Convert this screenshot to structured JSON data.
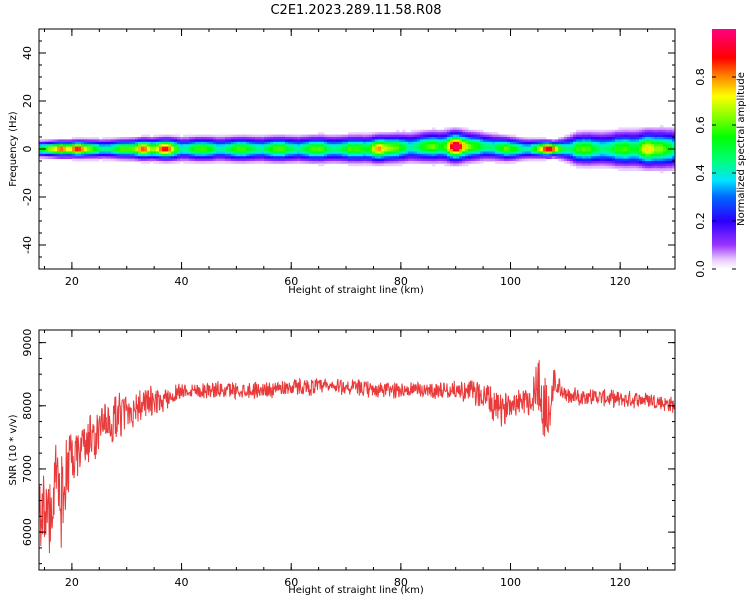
{
  "title": "C2E1.2023.289.11.58.R08",
  "chart_data": [
    {
      "type": "heatmap",
      "xlabel": "Height of straight line (km)",
      "ylabel": "Frequency (Hz)",
      "xlim": [
        14,
        130
      ],
      "ylim": [
        -50,
        50
      ],
      "x_ticks": [
        20,
        40,
        60,
        80,
        100,
        120
      ],
      "x_tick_labels": [
        "20",
        "40",
        "60",
        "80",
        "100",
        "120"
      ],
      "y_ticks": [
        40,
        20,
        0,
        -20,
        -40
      ],
      "y_tick_labels": [
        "40",
        "20",
        "0",
        "-20",
        "-40"
      ],
      "grid": false,
      "colorbar": {
        "label": "Normalized spectral amplitude",
        "range": [
          0,
          1
        ],
        "ticks": [
          0.0,
          0.2,
          0.4,
          0.6,
          0.8
        ],
        "tick_labels": [
          "0.0",
          "0.2",
          "0.4",
          "0.6",
          "0.8"
        ],
        "colormap": "gist_rainbow_r"
      },
      "band": {
        "center_frequency_hz": 0,
        "peak_frequency_profile": [
          [
            14,
            0
          ],
          [
            40,
            0
          ],
          [
            75,
            0
          ],
          [
            85,
            1
          ],
          [
            95,
            1
          ],
          [
            100,
            0
          ],
          [
            110,
            0
          ],
          [
            130,
            0
          ]
        ],
        "halfwidth_hz_profile": [
          [
            14,
            2
          ],
          [
            40,
            3
          ],
          [
            75,
            3.5
          ],
          [
            90,
            4
          ],
          [
            100,
            3
          ],
          [
            108,
            2
          ],
          [
            112,
            4
          ],
          [
            130,
            5
          ]
        ],
        "hot_spots": [
          {
            "x": 18,
            "amp": 0.85
          },
          {
            "x": 21,
            "amp": 0.9
          },
          {
            "x": 33,
            "amp": 0.85
          },
          {
            "x": 37,
            "amp": 0.9
          },
          {
            "x": 76,
            "amp": 0.8
          },
          {
            "x": 90,
            "amp": 1.0
          },
          {
            "x": 107,
            "amp": 0.95
          },
          {
            "x": 125,
            "amp": 0.75
          }
        ]
      }
    },
    {
      "type": "line",
      "xlabel": "Height of straight line (km)",
      "ylabel": "SNR (10 * v/v)",
      "xlim": [
        14,
        130
      ],
      "ylim": [
        5400,
        9200
      ],
      "x_ticks": [
        20,
        40,
        60,
        80,
        100,
        120
      ],
      "x_tick_labels": [
        "20",
        "40",
        "60",
        "80",
        "100",
        "120"
      ],
      "y_ticks": [
        9000,
        8000,
        7000,
        6000
      ],
      "y_tick_labels": [
        "9000",
        "8000",
        "7000",
        "6000"
      ],
      "grid": false,
      "color": "#e83a3a",
      "series": [
        {
          "x": [
            14,
            15,
            16,
            17,
            18,
            19,
            20,
            22,
            24,
            26,
            28,
            30,
            32,
            34,
            36,
            38,
            40,
            45,
            50,
            55,
            60,
            65,
            70,
            75,
            80,
            85,
            90,
            94,
            96,
            98,
            100,
            102,
            104,
            105,
            106,
            107,
            108,
            110,
            115,
            120,
            125,
            130
          ],
          "values": [
            6600,
            6300,
            6200,
            6900,
            6500,
            7000,
            7050,
            7400,
            7500,
            7700,
            7800,
            7900,
            8000,
            8050,
            8050,
            8150,
            8250,
            8250,
            8250,
            8250,
            8300,
            8300,
            8300,
            8250,
            8250,
            8250,
            8250,
            8200,
            8100,
            7900,
            8050,
            8100,
            8100,
            8400,
            8000,
            7800,
            8400,
            8150,
            8150,
            8100,
            8100,
            8000
          ],
          "noise": [
            800,
            800,
            800,
            600,
            800,
            700,
            500,
            400,
            500,
            400,
            400,
            400,
            300,
            300,
            200,
            200,
            150,
            150,
            150,
            150,
            150,
            150,
            150,
            150,
            150,
            150,
            150,
            250,
            300,
            300,
            250,
            250,
            300,
            700,
            700,
            600,
            250,
            150,
            150,
            150,
            150,
            150
          ]
        }
      ]
    }
  ]
}
